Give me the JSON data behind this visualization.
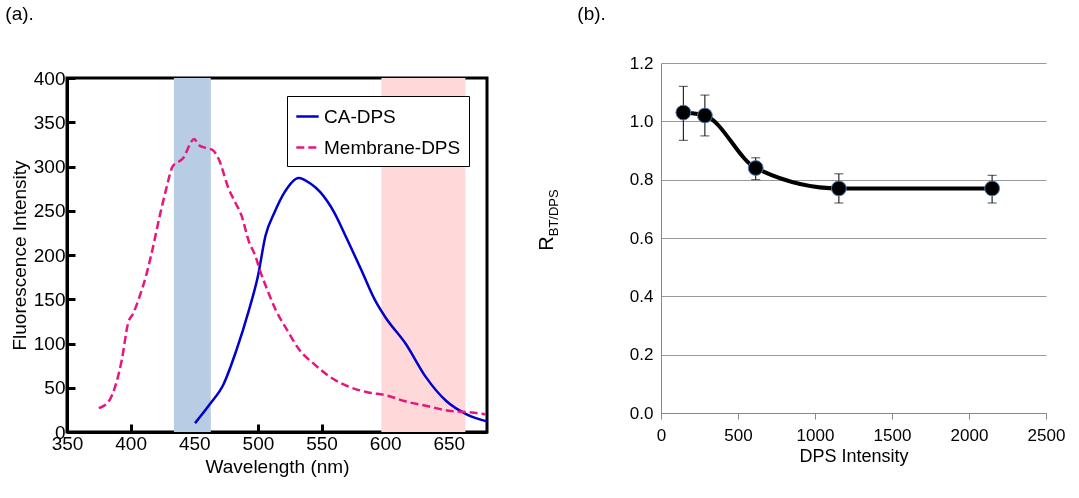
{
  "chart_data": [
    {
      "type": "line",
      "title": "(a).",
      "xlabel": "Wavelength (nm)",
      "ylabel": "Fluorescence Intensity",
      "xlim": [
        350,
        680
      ],
      "ylim": [
        0,
        400
      ],
      "xticks": [
        350,
        400,
        450,
        500,
        550,
        600,
        650
      ],
      "yticks": [
        0,
        50,
        100,
        150,
        200,
        250,
        300,
        350,
        400
      ],
      "legend": "top right",
      "marker": "none",
      "bands": [
        {
          "axis": "x",
          "from": 434,
          "to": 463,
          "color": "#b8cce4"
        },
        {
          "axis": "x",
          "from": 597,
          "to": 663,
          "color": "#ffd9d9"
        }
      ],
      "series": [
        {
          "name": "CA-DPS",
          "color": "#0000cc",
          "line_style": "solid",
          "x": [
            450.6,
            462,
            473,
            483,
            493,
            500,
            506,
            513,
            521,
            532,
            541,
            549,
            560,
            570,
            581,
            592,
            600,
            616,
            632,
            648,
            664,
            680
          ],
          "values": [
            10,
            31,
            54,
            92,
            138,
            176,
            222,
            248,
            271,
            287,
            281,
            271,
            248,
            218,
            184,
            149,
            130,
            100,
            62,
            35,
            20,
            12
          ]
        },
        {
          "name": "Membrane-DPS",
          "color": "#e8157f",
          "line_style": "dashed",
          "x": [
            375,
            383,
            388,
            393,
            398,
            402,
            407,
            412,
            416,
            423,
            428,
            433,
            441,
            450,
            453,
            459,
            464,
            469,
            477,
            482,
            487,
            493,
            498,
            502,
            507,
            514,
            523,
            533,
            544,
            557,
            570,
            586,
            602,
            615,
            634,
            650,
            668,
            679
          ],
          "values": [
            27,
            35,
            52,
            81,
            123,
            134,
            153,
            176,
            199,
            245,
            275,
            300,
            309,
            331,
            325,
            321,
            319,
            309,
            275,
            260,
            245,
            215,
            199,
            181,
            162,
            138,
            115,
            92,
            77,
            62,
            52,
            45,
            41,
            35,
            29,
            24,
            22,
            20
          ]
        }
      ]
    },
    {
      "type": "line",
      "title": "(b).",
      "xlabel": "DPS Intensity",
      "ylabel": "R$_{BT/DPS}$",
      "xlim": [
        0,
        2500
      ],
      "ylim": [
        0,
        1.2
      ],
      "xticks": [
        0,
        500,
        1000,
        1500,
        2000,
        2500
      ],
      "yticks": [
        {
          "value": 0,
          "label": "0.0"
        },
        0.2,
        0.4,
        0.6,
        0.8,
        {
          "value": 1,
          "label": "1.0"
        },
        1.2
      ],
      "grid": "y",
      "marker": "circle",
      "series": [
        {
          "color": "#000000",
          "line_style": "solid",
          "x": [
            145,
            285,
            615,
            1155,
            2150
          ],
          "values": [
            1.03,
            1.02,
            0.84,
            0.77,
            0.77
          ],
          "errors": [
            [
              0.935,
              1.12
            ],
            [
              0.95,
              1.09
            ],
            [
              0.8,
              0.875
            ],
            [
              0.72,
              0.82
            ],
            [
              0.72,
              0.815
            ]
          ]
        }
      ]
    }
  ]
}
